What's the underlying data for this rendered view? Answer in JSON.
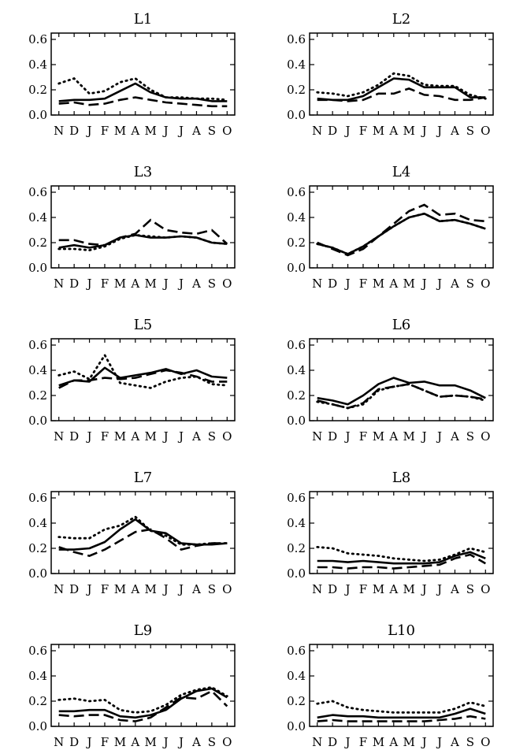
{
  "chart_data": [
    {
      "type": "line",
      "title": "L1",
      "categories": [
        "N",
        "D",
        "J",
        "F",
        "M",
        "A",
        "M",
        "J",
        "J",
        "A",
        "S",
        "O"
      ],
      "ylim": [
        0,
        0.65
      ],
      "yticks": [
        "0.0",
        "0.2",
        "0.4",
        "0.6"
      ],
      "grid": false,
      "series": [
        {
          "style": "solid",
          "values": [
            0.11,
            0.12,
            0.12,
            0.13,
            0.19,
            0.25,
            0.18,
            0.14,
            0.13,
            0.13,
            0.11,
            0.11
          ]
        },
        {
          "style": "dashed",
          "values": [
            0.09,
            0.1,
            0.08,
            0.09,
            0.12,
            0.14,
            0.12,
            0.1,
            0.09,
            0.08,
            0.07,
            0.07
          ]
        },
        {
          "style": "dotted",
          "values": [
            0.25,
            0.29,
            0.17,
            0.19,
            0.26,
            0.29,
            0.2,
            0.14,
            0.14,
            0.13,
            0.13,
            0.12
          ]
        }
      ]
    },
    {
      "type": "line",
      "title": "L2",
      "categories": [
        "N",
        "D",
        "J",
        "F",
        "M",
        "A",
        "M",
        "J",
        "J",
        "A",
        "S",
        "O"
      ],
      "ylim": [
        0,
        0.65
      ],
      "yticks": [
        "0.0",
        "0.2",
        "0.4",
        "0.6"
      ],
      "grid": false,
      "series": [
        {
          "style": "solid",
          "values": [
            0.13,
            0.12,
            0.12,
            0.15,
            0.22,
            0.29,
            0.28,
            0.22,
            0.22,
            0.22,
            0.14,
            0.14
          ]
        },
        {
          "style": "dashed",
          "values": [
            0.12,
            0.12,
            0.11,
            0.12,
            0.17,
            0.17,
            0.21,
            0.16,
            0.15,
            0.12,
            0.12,
            0.14
          ]
        },
        {
          "style": "dotted",
          "values": [
            0.18,
            0.17,
            0.15,
            0.18,
            0.24,
            0.33,
            0.31,
            0.24,
            0.23,
            0.23,
            0.16,
            0.13
          ]
        }
      ]
    },
    {
      "type": "line",
      "title": "L3",
      "categories": [
        "N",
        "D",
        "J",
        "F",
        "M",
        "A",
        "M",
        "J",
        "J",
        "A",
        "S",
        "O"
      ],
      "ylim": [
        0,
        0.65
      ],
      "yticks": [
        "0.0",
        "0.2",
        "0.4",
        "0.6"
      ],
      "grid": false,
      "series": [
        {
          "style": "solid",
          "values": [
            0.16,
            0.18,
            0.16,
            0.18,
            0.24,
            0.26,
            0.24,
            0.24,
            0.25,
            0.24,
            0.2,
            0.19
          ]
        },
        {
          "style": "dashed",
          "values": [
            0.22,
            0.22,
            0.19,
            0.18,
            0.24,
            0.27,
            0.38,
            0.3,
            0.28,
            0.27,
            0.3,
            0.19
          ]
        },
        {
          "style": "dotted",
          "values": [
            0.15,
            0.15,
            0.14,
            0.17,
            0.23,
            0.26,
            0.25,
            0.24,
            0.25,
            0.24,
            0.2,
            0.19
          ]
        }
      ]
    },
    {
      "type": "line",
      "title": "L4",
      "categories": [
        "N",
        "D",
        "J",
        "F",
        "M",
        "A",
        "M",
        "J",
        "J",
        "A",
        "S",
        "O"
      ],
      "ylim": [
        0,
        0.65
      ],
      "yticks": [
        "0.0",
        "0.2",
        "0.4",
        "0.6"
      ],
      "grid": false,
      "series": [
        {
          "style": "solid",
          "values": [
            0.19,
            0.16,
            0.11,
            0.17,
            0.25,
            0.33,
            0.4,
            0.43,
            0.37,
            0.38,
            0.35,
            0.31
          ]
        },
        {
          "style": "dashed",
          "values": [
            0.2,
            0.15,
            0.1,
            0.15,
            0.25,
            0.35,
            0.45,
            0.5,
            0.42,
            0.43,
            0.38,
            0.37
          ]
        },
        {
          "style": "dotted",
          "values": [
            0.19,
            0.16,
            0.11,
            0.17,
            0.25,
            0.33,
            0.4,
            0.43,
            0.37,
            0.38,
            0.35,
            0.31
          ]
        }
      ]
    },
    {
      "type": "line",
      "title": "L5",
      "categories": [
        "N",
        "D",
        "J",
        "F",
        "M",
        "A",
        "M",
        "J",
        "J",
        "A",
        "S",
        "O"
      ],
      "ylim": [
        0,
        0.65
      ],
      "yticks": [
        "0.0",
        "0.2",
        "0.4",
        "0.6"
      ],
      "grid": false,
      "series": [
        {
          "style": "solid",
          "values": [
            0.28,
            0.32,
            0.31,
            0.42,
            0.34,
            0.36,
            0.38,
            0.41,
            0.37,
            0.4,
            0.35,
            0.34
          ]
        },
        {
          "style": "dashed",
          "values": [
            0.26,
            0.32,
            0.32,
            0.34,
            0.33,
            0.34,
            0.37,
            0.4,
            0.38,
            0.35,
            0.31,
            0.31
          ]
        },
        {
          "style": "dotted",
          "values": [
            0.36,
            0.39,
            0.33,
            0.52,
            0.3,
            0.28,
            0.26,
            0.31,
            0.34,
            0.35,
            0.29,
            0.28
          ]
        }
      ]
    },
    {
      "type": "line",
      "title": "L6",
      "categories": [
        "N",
        "D",
        "J",
        "F",
        "M",
        "A",
        "M",
        "J",
        "J",
        "A",
        "S",
        "O"
      ],
      "ylim": [
        0,
        0.65
      ],
      "yticks": [
        "0.0",
        "0.2",
        "0.4",
        "0.6"
      ],
      "grid": false,
      "series": [
        {
          "style": "solid",
          "values": [
            0.18,
            0.16,
            0.13,
            0.2,
            0.29,
            0.34,
            0.3,
            0.31,
            0.28,
            0.28,
            0.24,
            0.18
          ]
        },
        {
          "style": "dashed",
          "values": [
            0.16,
            0.13,
            0.1,
            0.14,
            0.25,
            0.27,
            0.29,
            0.24,
            0.19,
            0.2,
            0.19,
            0.17
          ]
        },
        {
          "style": "dotted",
          "values": [
            0.15,
            0.13,
            0.1,
            0.13,
            0.24,
            0.27,
            0.29,
            0.24,
            0.19,
            0.2,
            0.19,
            0.16
          ]
        }
      ]
    },
    {
      "type": "line",
      "title": "L7",
      "categories": [
        "N",
        "D",
        "J",
        "F",
        "M",
        "A",
        "M",
        "J",
        "J",
        "A",
        "S",
        "O"
      ],
      "ylim": [
        0,
        0.65
      ],
      "yticks": [
        "0.0",
        "0.2",
        "0.4",
        "0.6"
      ],
      "grid": false,
      "series": [
        {
          "style": "solid",
          "values": [
            0.19,
            0.19,
            0.2,
            0.25,
            0.35,
            0.43,
            0.34,
            0.32,
            0.24,
            0.23,
            0.23,
            0.24
          ]
        },
        {
          "style": "dashed",
          "values": [
            0.21,
            0.17,
            0.14,
            0.19,
            0.26,
            0.33,
            0.35,
            0.28,
            0.19,
            0.22,
            0.24,
            0.24
          ]
        },
        {
          "style": "dotted",
          "values": [
            0.29,
            0.28,
            0.28,
            0.35,
            0.38,
            0.45,
            0.34,
            0.3,
            0.23,
            0.23,
            0.24,
            0.24
          ]
        }
      ]
    },
    {
      "type": "line",
      "title": "L8",
      "categories": [
        "N",
        "D",
        "J",
        "F",
        "M",
        "A",
        "M",
        "J",
        "J",
        "A",
        "S",
        "O"
      ],
      "ylim": [
        0,
        0.65
      ],
      "yticks": [
        "0.0",
        "0.2",
        "0.4",
        "0.6"
      ],
      "grid": false,
      "series": [
        {
          "style": "solid",
          "values": [
            0.1,
            0.1,
            0.09,
            0.1,
            0.09,
            0.08,
            0.08,
            0.08,
            0.09,
            0.14,
            0.17,
            0.12
          ]
        },
        {
          "style": "dashed",
          "values": [
            0.05,
            0.05,
            0.04,
            0.05,
            0.05,
            0.04,
            0.05,
            0.06,
            0.07,
            0.12,
            0.15,
            0.08
          ]
        },
        {
          "style": "dotted",
          "values": [
            0.21,
            0.2,
            0.16,
            0.15,
            0.14,
            0.12,
            0.11,
            0.1,
            0.11,
            0.15,
            0.2,
            0.17
          ]
        }
      ]
    },
    {
      "type": "line",
      "title": "L9",
      "categories": [
        "N",
        "D",
        "J",
        "F",
        "M",
        "A",
        "M",
        "J",
        "J",
        "A",
        "S",
        "O"
      ],
      "ylim": [
        0,
        0.65
      ],
      "yticks": [
        "0.0",
        "0.2",
        "0.4",
        "0.6"
      ],
      "grid": false,
      "series": [
        {
          "style": "solid",
          "values": [
            0.12,
            0.12,
            0.13,
            0.13,
            0.08,
            0.07,
            0.09,
            0.13,
            0.22,
            0.28,
            0.3,
            0.23
          ]
        },
        {
          "style": "dashed",
          "values": [
            0.09,
            0.08,
            0.09,
            0.09,
            0.05,
            0.04,
            0.07,
            0.15,
            0.23,
            0.22,
            0.28,
            0.16
          ]
        },
        {
          "style": "dotted",
          "values": [
            0.21,
            0.22,
            0.2,
            0.21,
            0.13,
            0.11,
            0.12,
            0.17,
            0.25,
            0.29,
            0.31,
            0.24
          ]
        }
      ]
    },
    {
      "type": "line",
      "title": "L10",
      "categories": [
        "N",
        "D",
        "J",
        "F",
        "M",
        "A",
        "M",
        "J",
        "J",
        "A",
        "S",
        "O"
      ],
      "ylim": [
        0,
        0.65
      ],
      "yticks": [
        "0.0",
        "0.2",
        "0.4",
        "0.6"
      ],
      "grid": false,
      "series": [
        {
          "style": "solid",
          "values": [
            0.07,
            0.09,
            0.08,
            0.08,
            0.07,
            0.07,
            0.07,
            0.07,
            0.07,
            0.1,
            0.14,
            0.1
          ]
        },
        {
          "style": "dashed",
          "values": [
            0.04,
            0.05,
            0.04,
            0.04,
            0.04,
            0.04,
            0.04,
            0.04,
            0.05,
            0.06,
            0.08,
            0.06
          ]
        },
        {
          "style": "dotted",
          "values": [
            0.18,
            0.2,
            0.15,
            0.13,
            0.12,
            0.11,
            0.11,
            0.11,
            0.11,
            0.14,
            0.19,
            0.16
          ]
        }
      ]
    }
  ]
}
